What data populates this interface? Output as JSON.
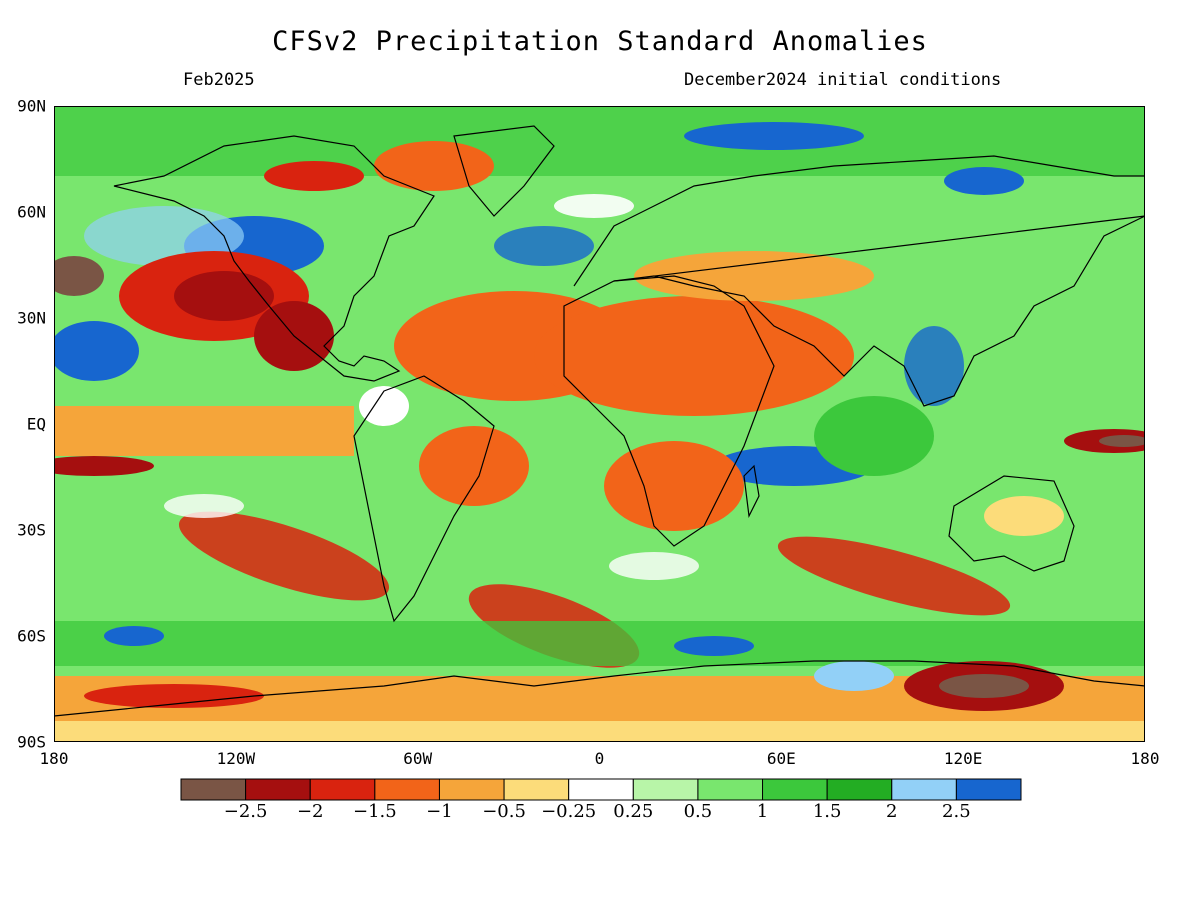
{
  "header": {
    "title": "CFSv2 Precipitation Standard Anomalies",
    "valid_month": "Feb2025",
    "initial_conditions": "December2024 initial conditions"
  },
  "map": {
    "projection": "equirectangular",
    "lon_range": [
      -180,
      180
    ],
    "lat_range": [
      -90,
      90
    ],
    "lat_ticks": [
      "90N",
      "60N",
      "30N",
      "EQ",
      "30S",
      "60S",
      "90S"
    ],
    "lat_tick_values": [
      90,
      60,
      30,
      0,
      -30,
      -60,
      -90
    ],
    "lon_ticks": [
      "180",
      "120W",
      "60W",
      "0",
      "60E",
      "120E",
      "180"
    ],
    "lon_tick_values": [
      -180,
      -120,
      -60,
      0,
      60,
      120,
      180
    ],
    "coastlines": true,
    "field": "precipitation standard anomaly"
  },
  "colorbar": {
    "labels": [
      "−2.5",
      "−2",
      "−1.5",
      "−1",
      "−0.5",
      "−0.25",
      "0.25",
      "0.5",
      "1",
      "1.5",
      "2",
      "2.5"
    ],
    "colors": [
      "#7a5545",
      "#a50f0f",
      "#d9230f",
      "#f26419",
      "#f5a53a",
      "#fcdc7a",
      "#ffffff",
      "#b8f5a8",
      "#79e66e",
      "#3cc83c",
      "#23ad23",
      "#92d0f7",
      "#1766cf"
    ]
  }
}
